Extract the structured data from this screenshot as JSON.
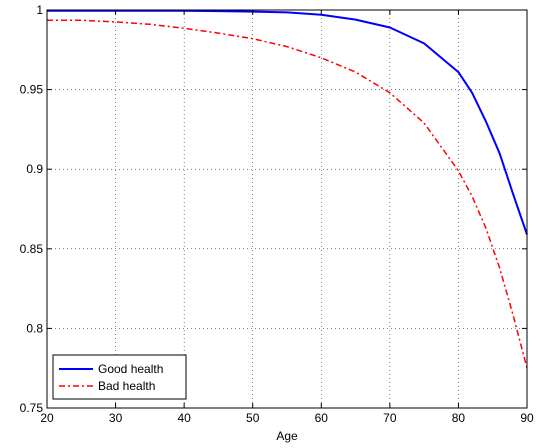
{
  "chart_data": {
    "type": "line",
    "title": "",
    "xlabel": "Age",
    "ylabel": "",
    "xlim": [
      20,
      90
    ],
    "ylim": [
      0.75,
      1.0
    ],
    "grid": true,
    "legend_position": "bottom-left",
    "x_ticks": [
      "20",
      "30",
      "40",
      "50",
      "60",
      "70",
      "80",
      "90"
    ],
    "y_ticks": [
      "0.75",
      "0.8",
      "0.85",
      "0.9",
      "0.95",
      "1"
    ],
    "x": [
      20,
      25,
      30,
      35,
      40,
      45,
      50,
      55,
      60,
      65,
      70,
      75,
      80,
      82,
      84,
      86,
      88,
      90
    ],
    "series": [
      {
        "name": "Good health",
        "color": "#0000ff",
        "style": "solid",
        "values": [
          0.9995,
          0.9995,
          0.9995,
          0.9995,
          0.9995,
          0.9993,
          0.999,
          0.9985,
          0.997,
          0.994,
          0.989,
          0.979,
          0.961,
          0.948,
          0.93,
          0.91,
          0.884,
          0.859
        ]
      },
      {
        "name": "Bad health",
        "color": "#ff0000",
        "style": "dash-dot",
        "values": [
          0.9935,
          0.9935,
          0.9925,
          0.991,
          0.9885,
          0.9855,
          0.982,
          0.977,
          0.97,
          0.961,
          0.948,
          0.929,
          0.899,
          0.883,
          0.863,
          0.838,
          0.808,
          0.775
        ]
      }
    ]
  }
}
